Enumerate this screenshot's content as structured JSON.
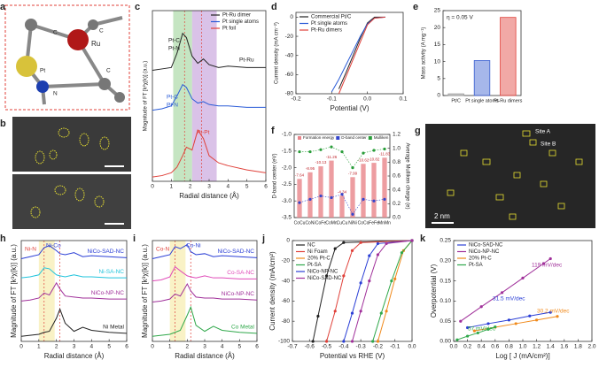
{
  "images": [
    {
      "panel": "a",
      "labels": [
        "C",
        "Ru",
        "Pt",
        "N",
        "C",
        "C"
      ]
    },
    {
      "panel": "b"
    },
    {
      "panel": "g",
      "labels": [
        "Site A",
        "Site B",
        "2 nm"
      ]
    }
  ],
  "chart_data": [
    {
      "panel": "c",
      "type": "line",
      "xlabel": "Radial distance (Å)",
      "ylabel": "Magnitude of FT [k²χ(k)] (a.u.)",
      "legend": "upper right",
      "x": [
        0,
        0.5,
        1,
        1.3,
        1.6,
        1.8,
        2.1,
        2.4,
        2.7,
        3,
        3.5,
        4,
        5,
        6
      ],
      "xlim": [
        0,
        6
      ],
      "xticks": [
        0,
        1,
        2,
        3,
        4,
        5,
        6
      ],
      "ylim": [
        0,
        12
      ],
      "series": [
        {
          "name": "Pt-Ru dimer",
          "color": "#222222",
          "values": [
            7.8,
            7.9,
            8.0,
            9.0,
            10.4,
            10.1,
            8.8,
            8.3,
            8.6,
            8.2,
            8.0,
            8.1,
            8.0,
            8.0
          ]
        },
        {
          "name": "Pt single atoms",
          "color": "#2a5bd7",
          "values": [
            5.0,
            5.1,
            5.3,
            6.0,
            6.8,
            6.6,
            5.8,
            5.5,
            5.6,
            5.4,
            5.3,
            5.3,
            5.2,
            5.2
          ]
        },
        {
          "name": "Pt foil",
          "color": "#e0413a",
          "values": [
            0.3,
            0.4,
            0.6,
            1.0,
            1.8,
            2.4,
            2.2,
            3.6,
            3.0,
            1.8,
            1.3,
            1.1,
            0.8,
            0.6
          ]
        }
      ],
      "annotations": [
        "Pt-C",
        "Pt-N",
        "Pt-Ru",
        "Pt-C",
        "Pt-N",
        "Pt-Pt"
      ]
    },
    {
      "panel": "d",
      "type": "line",
      "xlabel": "Potential (V)",
      "ylabel": "Current density (mA cm⁻²)",
      "legend": "upper left",
      "x": [
        -0.2,
        -0.15,
        -0.1,
        -0.08,
        -0.06,
        -0.04,
        -0.02,
        0,
        0.02,
        0.05
      ],
      "xlim": [
        -0.2,
        0.1
      ],
      "xticks": [
        -0.2,
        -0.1,
        {
          "value": 0,
          "label": "0.0"
        },
        0.1
      ],
      "ylim": [
        -80,
        5
      ],
      "yticks": [
        -80,
        -60,
        -40,
        -20,
        0
      ],
      "series": [
        {
          "name": "Commercial Pt/C",
          "color": "#222222",
          "values": [
            null,
            null,
            null,
            -75,
            -58,
            -40,
            -22,
            -6,
            0,
            0
          ]
        },
        {
          "name": "Pt single atoms",
          "color": "#2a5bd7",
          "values": [
            null,
            null,
            -78,
            -65,
            -50,
            -35,
            -20,
            -7,
            -1,
            0
          ]
        },
        {
          "name": "Pt-Ru dimers",
          "color": "#e0413a",
          "values": [
            null,
            null,
            null,
            -80,
            -62,
            -44,
            -26,
            -8,
            -1,
            0
          ]
        }
      ]
    },
    {
      "panel": "e",
      "type": "bar",
      "title": "η = 0.05 V",
      "ylabel": "Mass activity (A mg⁻¹)",
      "categories": [
        "Pt/C",
        "Pt single atoms",
        "Pt-Ru dimers"
      ],
      "values": [
        0.5,
        10.3,
        23
      ],
      "colors": [
        "#9a9a9a",
        "#3a5fd0",
        "#e0413a"
      ],
      "ylim": [
        0,
        25
      ],
      "yticks": [
        0,
        5,
        10,
        15,
        20,
        25
      ]
    },
    {
      "panel": "f",
      "type": "combo",
      "ylabel": "D-band center (eV)",
      "y2label": "Average Mulliken charge (e)",
      "legend": "upper center",
      "categories": [
        "CoCu",
        "CoNi",
        "CoFe",
        "CoMn",
        "CuCu",
        "NiNi",
        "CoCo",
        "FeFe",
        "MnMn"
      ],
      "ylim": [
        -3.5,
        -1.0
      ],
      "yticks": [
        -3.5,
        {
          "value": -3,
          "label": "-3.0"
        },
        -2.5,
        {
          "value": -2,
          "label": "-2.0"
        },
        -1.5,
        {
          "value": -1,
          "label": "-1.0"
        }
      ],
      "y2lim": [
        0,
        1.2
      ],
      "y2ticks": [
        {
          "value": 0,
          "label": "0.0"
        },
        0.2,
        0.4,
        0.6,
        0.8,
        {
          "value": 1,
          "label": "1.0"
        },
        1.2
      ],
      "series": [
        {
          "name": "Formation energy",
          "kind": "bar",
          "color": "#e8848a",
          "values": [
            -7.64,
            -8.95,
            -10.13,
            -11.26,
            -4.34,
            -7.99,
            -10.62,
            -10.82,
            -11.83
          ]
        },
        {
          "name": "D-band center",
          "color": "#3344cc",
          "values": [
            -3.05,
            -2.95,
            -2.85,
            -2.9,
            -2.8,
            -3.4,
            -2.95,
            -3.0,
            -2.95
          ]
        },
        {
          "name": "Mulliken",
          "color": "#2a9d3a",
          "axis": "y2",
          "values": [
            0.95,
            0.95,
            0.98,
            1.02,
            0.95,
            0.72,
            0.93,
            0.97,
            0.99
          ]
        }
      ]
    },
    {
      "panel": "h",
      "type": "line",
      "xlabel": "Radial distance (Å)",
      "ylabel": "Magnitude of FT [k³χ(k)] (a.u.)",
      "legend": "curve",
      "x": [
        0,
        0.5,
        1,
        1.3,
        1.6,
        2,
        2.2,
        2.5,
        3,
        3.5,
        4,
        5,
        6
      ],
      "xlim": [
        0,
        6
      ],
      "xticks": [
        0,
        1,
        2,
        3,
        4,
        5,
        6
      ],
      "ylim": [
        0,
        10
      ],
      "series": [
        {
          "name": "NiCo-SAD-NC",
          "color": "#2b3fd6",
          "values": [
            8.2,
            8.4,
            8.6,
            9.3,
            9.5,
            9.0,
            8.7,
            8.6,
            8.8,
            8.4,
            8.5,
            8.4,
            8.3
          ]
        },
        {
          "name": "Ni-SA-NC",
          "color": "#22c4dc",
          "values": [
            6.3,
            6.4,
            6.6,
            7.3,
            7.2,
            6.6,
            6.5,
            6.4,
            6.6,
            6.4,
            6.4,
            6.3,
            6.3
          ]
        },
        {
          "name": "NiCo-NP-NC",
          "color": "#a0309a",
          "values": [
            4.0,
            4.1,
            4.3,
            4.8,
            4.6,
            5.8,
            5.2,
            4.5,
            4.4,
            4.3,
            4.3,
            4.2,
            4.2
          ]
        },
        {
          "name": "Ni Metal",
          "color": "#222222",
          "values": [
            0.5,
            0.6,
            0.7,
            0.9,
            1.0,
            2.3,
            3.2,
            1.8,
            1.0,
            1.4,
            1.1,
            0.9,
            0.8
          ]
        }
      ],
      "annotations": [
        "Ni-N",
        "Ni-Co"
      ]
    },
    {
      "panel": "i",
      "type": "line",
      "xlabel": "Radial distance (Å)",
      "ylabel": "Magnitude of FT [k³χ(k)] (a.u.)",
      "legend": "curve",
      "x": [
        0,
        0.5,
        1,
        1.3,
        1.6,
        2,
        2.2,
        2.5,
        3,
        3.5,
        4,
        5,
        6
      ],
      "xlim": [
        0,
        6
      ],
      "xticks": [
        0,
        1,
        2,
        3,
        4,
        5,
        6
      ],
      "ylim": [
        0,
        10
      ],
      "series": [
        {
          "name": "NiCo-SAD-NC",
          "color": "#2b3fd6",
          "values": [
            8.2,
            8.4,
            8.6,
            9.4,
            9.2,
            9.6,
            8.9,
            8.6,
            8.7,
            8.4,
            8.5,
            8.4,
            8.3
          ]
        },
        {
          "name": "Co-SA-NC",
          "color": "#e04bb8",
          "values": [
            6.0,
            6.1,
            6.4,
            7.4,
            7.0,
            6.5,
            6.4,
            6.3,
            6.5,
            6.3,
            6.3,
            6.2,
            6.2
          ]
        },
        {
          "name": "NiCo-NP-NC",
          "color": "#a0309a",
          "values": [
            3.9,
            4.0,
            4.2,
            4.7,
            4.5,
            5.7,
            5.0,
            4.4,
            4.3,
            4.3,
            4.2,
            4.2,
            4.1
          ]
        },
        {
          "name": "Co Metal",
          "color": "#2fa84a",
          "values": [
            0.5,
            0.6,
            0.7,
            0.9,
            1.1,
            2.6,
            3.4,
            1.6,
            1.0,
            1.5,
            1.1,
            0.9,
            0.8
          ]
        }
      ],
      "annotations": [
        "Co-N",
        "Co-Ni"
      ]
    },
    {
      "panel": "j",
      "type": "line",
      "markers": true,
      "xlabel": "Potential vs RHE (V)",
      "ylabel": "Current density (mA/cm²)",
      "legend": "upper left",
      "xlim": [
        -0.7,
        0
      ],
      "xticks": [
        -0.7,
        -0.6,
        -0.5,
        -0.4,
        -0.3,
        -0.2,
        -0.1,
        {
          "value": 0,
          "label": "0.0"
        }
      ],
      "ylim": [
        -100,
        0
      ],
      "yticks": [
        -100,
        -80,
        -60,
        -40,
        -20,
        0
      ],
      "series": [
        {
          "name": "NC",
          "color": "#222222",
          "x": [
            -0.58,
            -0.55,
            -0.5,
            -0.45,
            -0.4,
            0
          ],
          "values": [
            -100,
            -75,
            -35,
            -8,
            -2,
            0
          ]
        },
        {
          "name": "Ni Foam",
          "color": "#e0413a",
          "x": [
            -0.5,
            -0.45,
            -0.4,
            -0.35,
            -0.3,
            0
          ],
          "values": [
            -100,
            -70,
            -35,
            -10,
            -2,
            0
          ]
        },
        {
          "name": "20% Pt-C",
          "color": "#f08a1c",
          "x": [
            -0.2,
            -0.15,
            -0.1,
            -0.05,
            0
          ],
          "values": [
            -100,
            -70,
            -38,
            -10,
            0
          ]
        },
        {
          "name": "Pt-SA",
          "color": "#2fa84a",
          "x": [
            -0.23,
            -0.18,
            -0.12,
            -0.06,
            0
          ],
          "values": [
            -100,
            -72,
            -40,
            -12,
            0
          ]
        },
        {
          "name": "NiCo-NP-NC",
          "color": "#2b3fd6",
          "x": [
            -0.4,
            -0.35,
            -0.3,
            -0.25,
            -0.2,
            0
          ],
          "values": [
            -100,
            -72,
            -42,
            -15,
            -3,
            0
          ]
        },
        {
          "name": "NiCo-SAD-NC",
          "color": "#a0309a",
          "x": [
            -0.35,
            -0.3,
            -0.25,
            -0.2,
            -0.15,
            0
          ],
          "values": [
            -100,
            -70,
            -40,
            -14,
            -3,
            0
          ]
        }
      ]
    },
    {
      "panel": "k",
      "type": "line",
      "markers": true,
      "xlabel": "Log [ J (mA/cm²)]",
      "ylabel": "Overpotential (V)",
      "legend": "upper left",
      "xlim": [
        0,
        2
      ],
      "xticks": [
        {
          "value": 0,
          "label": "0.0"
        },
        0.2,
        0.4,
        0.6,
        0.8,
        {
          "value": 1,
          "label": "1.0"
        },
        1.2,
        1.4,
        1.6,
        1.8,
        {
          "value": 2,
          "label": "2.0"
        }
      ],
      "ylim": [
        0,
        0.25
      ],
      "yticks": [
        {
          "value": 0,
          "label": "0.00"
        },
        0.05,
        {
          "value": 0.1,
          "label": "0.10"
        },
        0.15,
        {
          "value": 0.2,
          "label": "0.20"
        },
        0.25
      ],
      "series": [
        {
          "name": "NiCo-SAD-NC",
          "color": "#2b3fd6",
          "x": [
            0.2,
            0.5,
            0.8,
            1.1,
            1.4
          ],
          "values": [
            0.034,
            0.044,
            0.053,
            0.063,
            0.072
          ]
        },
        {
          "name": "NiCo-NP-NC",
          "color": "#a0309a",
          "x": [
            0.1,
            0.4,
            0.7,
            1.0,
            1.3,
            1.4
          ],
          "values": [
            0.05,
            0.086,
            0.121,
            0.157,
            0.193,
            0.205
          ]
        },
        {
          "name": "20% Pt-C",
          "color": "#f08a1c",
          "x": [
            0.3,
            0.6,
            0.9,
            1.2,
            1.5
          ],
          "values": [
            0.026,
            0.035,
            0.044,
            0.053,
            0.062
          ]
        },
        {
          "name": "Pt-SA",
          "color": "#2fa84a",
          "x": [
            0.05,
            0.2,
            0.35,
            0.5,
            0.6
          ],
          "values": [
            0.004,
            0.013,
            0.021,
            0.03,
            0.036
          ]
        }
      ],
      "annotations": [
        "119 mV/dec",
        "31.5 mV/dec",
        "30.2 mV/dec",
        "57 mV/dec"
      ]
    }
  ]
}
